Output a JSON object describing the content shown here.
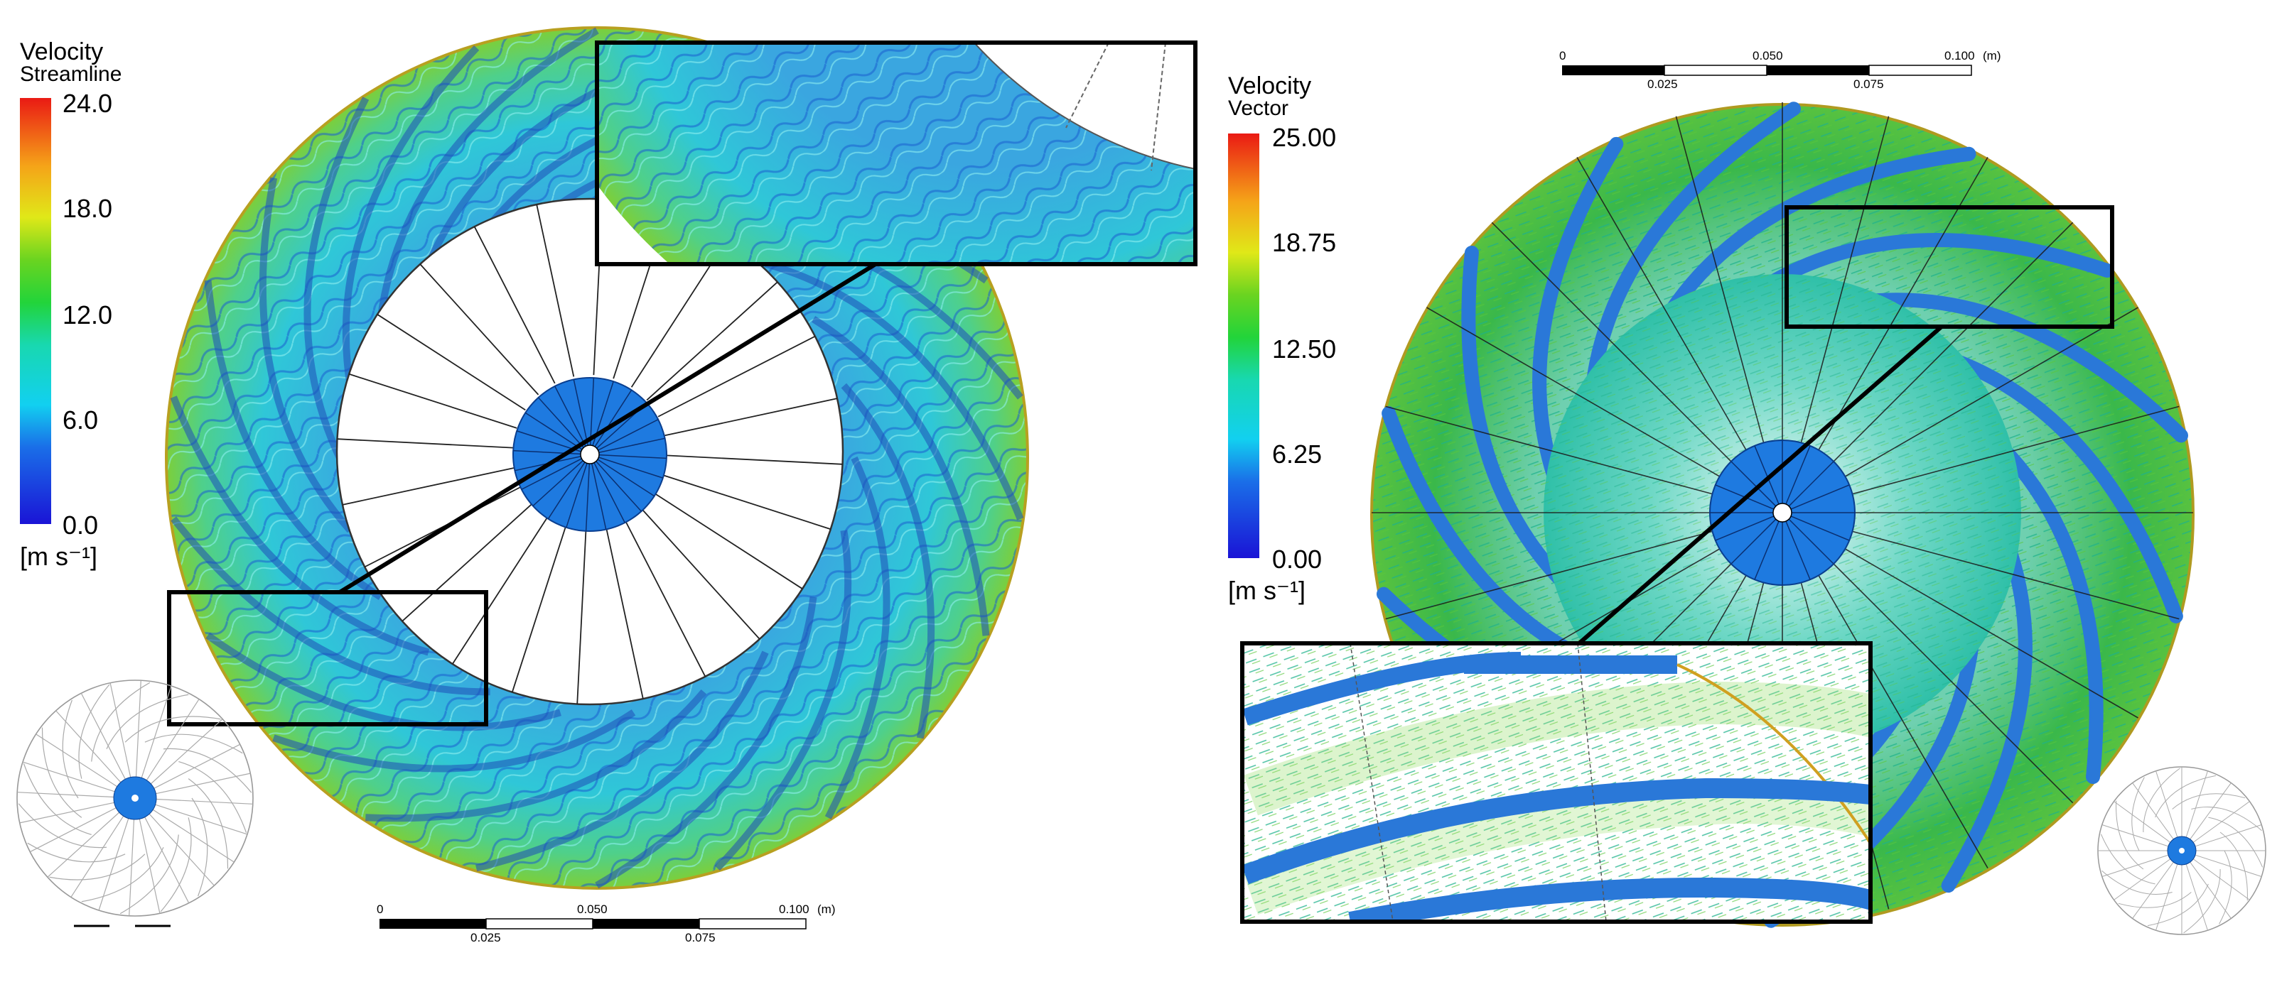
{
  "colors": {
    "velocity_low": "#1a2bd6",
    "velocity_mid": "#2ad4e0",
    "velocity_high": "#e81818",
    "hub_blue": "#1e7ae0",
    "blade_blue": "#2a78d8",
    "flow_field": "#2fc9b8"
  },
  "left_panel": {
    "legend": {
      "title": "Velocity",
      "subtitle": "Streamline",
      "ticks": [
        "24.0",
        "18.0",
        "12.0",
        "6.0",
        "0.0"
      ],
      "unit": "[m s⁻¹]"
    },
    "scale_bar": {
      "top_labels": [
        "0",
        "0.050",
        "0.100"
      ],
      "unit": "(m)",
      "bottom_labels": [
        "0.025",
        "0.075"
      ]
    }
  },
  "right_panel": {
    "legend": {
      "title": "Velocity",
      "subtitle": "Vector",
      "ticks": [
        "25.00",
        "18.75",
        "12.50",
        "6.25",
        "0.00"
      ],
      "unit": "[m s⁻¹]"
    },
    "scale_bar": {
      "top_labels": [
        "0",
        "0.050",
        "0.100"
      ],
      "unit": "(m)",
      "bottom_labels": [
        "0.025",
        "0.075"
      ]
    }
  }
}
